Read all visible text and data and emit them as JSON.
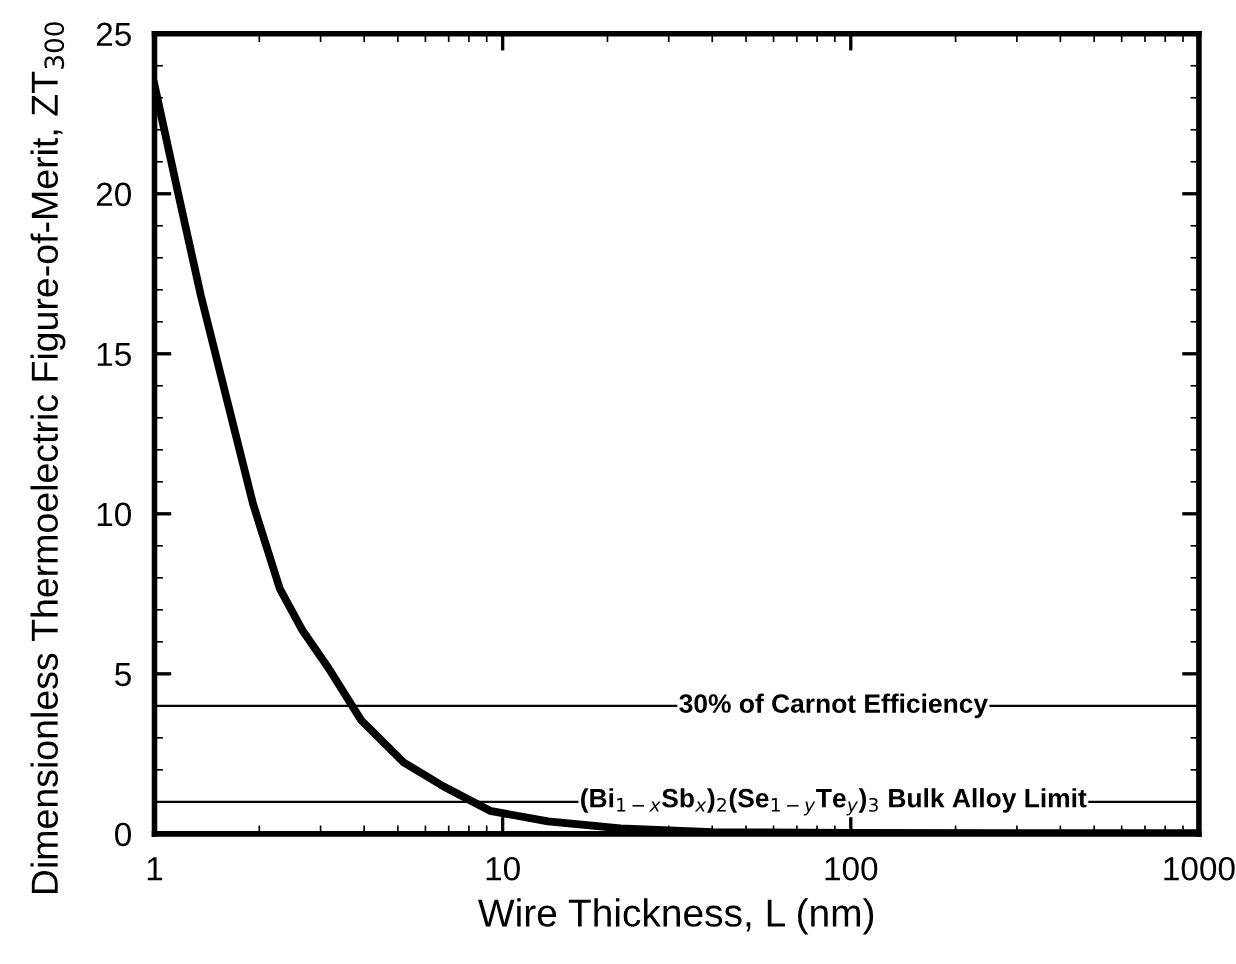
{
  "chart_data": {
    "type": "line",
    "xlabel": "Wire Thickness, L (nm)",
    "ylabel": "Dimensionless Thermoelectric Figure-of-Merit, ZT$_{300}$",
    "log": "x",
    "xlim": [
      1,
      1000
    ],
    "xticks": [
      1,
      10,
      100,
      1000
    ],
    "ylim": [
      0,
      25
    ],
    "yticks": [
      0,
      5,
      10,
      15,
      20,
      25
    ],
    "grid": false,
    "marker": "none",
    "line_style": "solid",
    "series": [
      {
        "color": "#000000",
        "x": [
          1,
          1.17,
          1.36,
          1.62,
          1.92,
          2.29,
          2.66,
          3.17,
          3.93,
          5.2,
          6.77,
          9.2,
          13.5,
          21.8,
          40,
          100,
          300,
          1000
        ],
        "values": [
          23.4,
          20.0,
          16.8,
          13.5,
          10.3,
          7.66,
          6.36,
          5.16,
          3.54,
          2.23,
          1.48,
          0.72,
          0.39,
          0.17,
          0.05,
          0.03,
          0.02,
          0.02
        ]
      }
    ],
    "ref_lines": [
      {
        "axis": "y",
        "value": 4,
        "label": "30% of Carnot Efficiency",
        "color": "#000000"
      },
      {
        "axis": "y",
        "value": 1,
        "label": "(Bi$_{1−x}$Sb$_{x}$)$_{2}$(Se$_{1−y}$Te$_{y}$)$_{3}$ Bulk Alloy Limit",
        "color": "#000000"
      }
    ]
  }
}
